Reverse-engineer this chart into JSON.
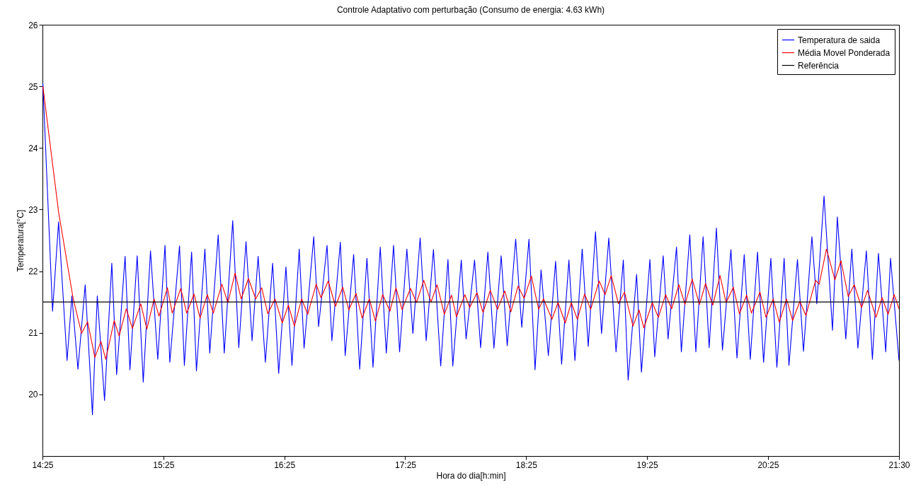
{
  "chart_data": {
    "type": "line",
    "title": "Controle Adaptativo com perturbação (Consumo de energia: 4.63 kWh)",
    "xlabel": "Hora do dia[h:min]",
    "ylabel": "Temperatura[°C]",
    "xlim": [
      14.4167,
      21.5
    ],
    "xticks": [
      {
        "value": 14.4167,
        "label": "14:25"
      },
      {
        "value": 15.4167,
        "label": "15:25"
      },
      {
        "value": 16.4167,
        "label": "16:25"
      },
      {
        "value": 17.4167,
        "label": "17:25"
      },
      {
        "value": 18.4167,
        "label": "18:25"
      },
      {
        "value": 19.4167,
        "label": "19:25"
      },
      {
        "value": 20.4167,
        "label": "20:25"
      },
      {
        "value": 21.5,
        "label": "21:30"
      }
    ],
    "ylim": [
      19,
      26
    ],
    "yticks": [
      20,
      21,
      22,
      23,
      24,
      25,
      26
    ],
    "grid": false,
    "legend": "top right",
    "series": [
      {
        "name": "Temperatura de saida",
        "color": "#0000ff",
        "x": [
          14.42,
          14.5,
          14.55,
          14.62,
          14.66,
          14.71,
          14.77,
          14.83,
          14.87,
          14.93,
          14.99,
          15.03,
          15.1,
          15.14,
          15.2,
          15.25,
          15.31,
          15.37,
          15.43,
          15.47,
          15.55,
          15.59,
          15.65,
          15.69,
          15.76,
          15.8,
          15.87,
          15.92,
          15.99,
          16.04,
          16.1,
          16.15,
          16.2,
          16.26,
          16.32,
          16.37,
          16.43,
          16.48,
          16.54,
          16.58,
          16.66,
          16.7,
          16.77,
          16.81,
          16.88,
          16.92,
          16.99,
          17.04,
          17.1,
          17.15,
          17.21,
          17.26,
          17.32,
          17.37,
          17.43,
          17.48,
          17.54,
          17.59,
          17.65,
          17.71,
          17.77,
          17.81,
          17.88,
          17.92,
          17.99,
          18.04,
          18.1,
          18.15,
          18.21,
          18.26,
          18.33,
          18.38,
          18.44,
          18.49,
          18.54,
          18.6,
          18.66,
          18.71,
          18.77,
          18.82,
          18.88,
          18.93,
          18.99,
          19.04,
          19.1,
          19.16,
          19.22,
          19.26,
          19.33,
          19.37,
          19.44,
          19.48,
          19.55,
          19.59,
          19.66,
          19.7,
          19.77,
          19.82,
          19.88,
          19.93,
          19.99,
          20.04,
          20.11,
          20.16,
          20.22,
          20.27,
          20.33,
          20.38,
          20.44,
          20.49,
          20.55,
          20.59,
          20.66,
          20.71,
          20.78,
          20.82,
          20.88,
          20.95,
          20.99,
          21.06,
          21.11,
          21.16,
          21.23,
          21.28,
          21.33,
          21.39,
          21.43,
          21.5
        ],
        "values": [
          25.05,
          21.35,
          22.8,
          20.55,
          21.6,
          20.41,
          21.78,
          19.67,
          21.6,
          19.9,
          22.13,
          20.32,
          22.24,
          20.4,
          22.25,
          20.2,
          22.33,
          20.57,
          22.42,
          20.52,
          22.41,
          20.47,
          22.31,
          20.38,
          22.36,
          20.67,
          22.59,
          20.67,
          22.82,
          20.76,
          22.48,
          20.87,
          22.24,
          20.52,
          22.13,
          20.34,
          22.07,
          20.47,
          22.36,
          20.75,
          22.56,
          21.1,
          22.42,
          20.87,
          22.47,
          20.63,
          22.27,
          20.41,
          22.21,
          20.44,
          22.39,
          20.67,
          22.42,
          20.69,
          22.36,
          20.99,
          22.54,
          20.87,
          22.35,
          20.46,
          22.19,
          20.46,
          22.18,
          20.9,
          22.18,
          20.76,
          22.31,
          20.75,
          22.25,
          20.79,
          22.52,
          21.09,
          22.52,
          20.4,
          22.02,
          20.63,
          22.16,
          20.49,
          22.18,
          20.55,
          22.36,
          20.78,
          22.64,
          20.99,
          22.54,
          20.69,
          22.18,
          20.23,
          21.95,
          20.36,
          22.19,
          20.61,
          22.25,
          20.9,
          22.39,
          20.69,
          22.59,
          20.69,
          22.56,
          20.76,
          22.7,
          20.72,
          22.35,
          20.59,
          22.27,
          20.57,
          22.31,
          20.52,
          22.21,
          20.44,
          22.21,
          20.47,
          22.19,
          20.7,
          22.56,
          21.47,
          23.22,
          21.04,
          22.88,
          20.9,
          22.36,
          20.75,
          22.33,
          20.57,
          22.29,
          20.69,
          22.21,
          20.55
        ]
      },
      {
        "name": "Média Movel Ponderada",
        "color": "#ff0000",
        "x": [
          14.42,
          14.55,
          14.67,
          14.74,
          14.79,
          14.85,
          14.9,
          14.94,
          15.01,
          15.05,
          15.11,
          15.16,
          15.23,
          15.28,
          15.34,
          15.38,
          15.45,
          15.49,
          15.56,
          15.61,
          15.67,
          15.72,
          15.78,
          15.83,
          15.9,
          15.95,
          16.01,
          16.06,
          16.12,
          16.18,
          16.23,
          16.28,
          16.34,
          16.4,
          16.45,
          16.5,
          16.56,
          16.61,
          16.68,
          16.72,
          16.78,
          16.84,
          16.9,
          16.95,
          17.01,
          17.06,
          17.12,
          17.17,
          17.23,
          17.29,
          17.34,
          17.39,
          17.46,
          17.51,
          17.57,
          17.63,
          17.68,
          17.74,
          17.8,
          17.84,
          17.91,
          17.95,
          18.01,
          18.06,
          18.12,
          18.18,
          18.24,
          18.29,
          18.35,
          18.4,
          18.46,
          18.52,
          18.56,
          18.63,
          18.68,
          18.74,
          18.79,
          18.84,
          18.9,
          18.95,
          19.02,
          19.07,
          19.12,
          19.18,
          19.23,
          19.3,
          19.35,
          19.39,
          19.46,
          19.51,
          19.57,
          19.62,
          19.68,
          19.73,
          19.79,
          19.85,
          19.9,
          19.96,
          20.02,
          20.07,
          20.13,
          20.18,
          20.24,
          20.28,
          20.35,
          20.4,
          20.46,
          20.51,
          20.57,
          20.62,
          20.68,
          20.73,
          20.81,
          20.84,
          20.9,
          20.97,
          21.02,
          21.08,
          21.13,
          21.19,
          21.24,
          21.31,
          21.36,
          21.41,
          21.46,
          21.5
        ],
        "values": [
          25.0,
          22.96,
          21.56,
          20.99,
          21.18,
          20.6,
          20.86,
          20.57,
          21.2,
          20.95,
          21.39,
          21.07,
          21.47,
          21.06,
          21.55,
          21.27,
          21.73,
          21.32,
          21.72,
          21.32,
          21.63,
          21.24,
          21.62,
          21.32,
          21.79,
          21.49,
          21.97,
          21.55,
          21.88,
          21.55,
          21.73,
          21.31,
          21.55,
          21.16,
          21.45,
          21.11,
          21.55,
          21.3,
          21.79,
          21.57,
          21.84,
          21.43,
          21.74,
          21.37,
          21.64,
          21.24,
          21.55,
          21.19,
          21.62,
          21.35,
          21.73,
          21.38,
          21.72,
          21.49,
          21.85,
          21.5,
          21.78,
          21.3,
          21.61,
          21.26,
          21.62,
          21.41,
          21.65,
          21.33,
          21.69,
          21.38,
          21.68,
          21.34,
          21.76,
          21.56,
          21.92,
          21.38,
          21.55,
          21.22,
          21.49,
          21.16,
          21.49,
          21.22,
          21.63,
          21.38,
          21.84,
          21.62,
          21.93,
          21.47,
          21.66,
          21.11,
          21.37,
          21.08,
          21.49,
          21.25,
          21.62,
          21.39,
          21.78,
          21.46,
          21.87,
          21.46,
          21.8,
          21.45,
          21.93,
          21.49,
          21.74,
          21.31,
          21.61,
          21.32,
          21.66,
          21.25,
          21.55,
          21.17,
          21.55,
          21.2,
          21.51,
          21.28,
          21.85,
          21.79,
          22.36,
          21.86,
          22.17,
          21.59,
          21.78,
          21.41,
          21.69,
          21.25,
          21.57,
          21.3,
          21.62,
          21.39
        ]
      },
      {
        "name": "Referência",
        "color": "#000000",
        "x": [
          14.4167,
          21.5
        ],
        "values": [
          21.5,
          21.5
        ]
      }
    ]
  }
}
